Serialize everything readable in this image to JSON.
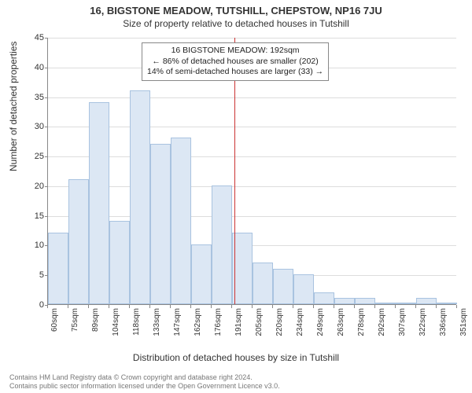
{
  "title": "16, BIGSTONE MEADOW, TUTSHILL, CHEPSTOW, NP16 7JU",
  "subtitle": "Size of property relative to detached houses in Tutshill",
  "chart": {
    "type": "histogram",
    "ylabel": "Number of detached properties",
    "xlabel": "Distribution of detached houses by size in Tutshill",
    "ylim": [
      0,
      45
    ],
    "ytick_step": 5,
    "xtick_labels": [
      "60sqm",
      "75sqm",
      "89sqm",
      "104sqm",
      "118sqm",
      "133sqm",
      "147sqm",
      "162sqm",
      "176sqm",
      "191sqm",
      "205sqm",
      "220sqm",
      "234sqm",
      "249sqm",
      "263sqm",
      "278sqm",
      "292sqm",
      "307sqm",
      "322sqm",
      "336sqm",
      "351sqm"
    ],
    "values": [
      12,
      21,
      34,
      14,
      36,
      27,
      28,
      10,
      20,
      12,
      7,
      6,
      5,
      2,
      1,
      1,
      0,
      0,
      1,
      0
    ],
    "bar_fill": "#dce7f4",
    "bar_stroke": "#a9c3e0",
    "grid_color": "#dddddd",
    "axis_color": "#888888",
    "background_color": "#ffffff",
    "marker": {
      "position_index": 9.1,
      "color": "#cc3333"
    },
    "callout": {
      "line1": "16 BIGSTONE MEADOW: 192sqm",
      "line2": "← 86% of detached houses are smaller (202)",
      "line3": "14% of semi-detached houses are larger (33) →"
    }
  },
  "footer": {
    "line1": "Contains HM Land Registry data © Crown copyright and database right 2024.",
    "line2": "Contains public sector information licensed under the Open Government Licence v3.0."
  }
}
